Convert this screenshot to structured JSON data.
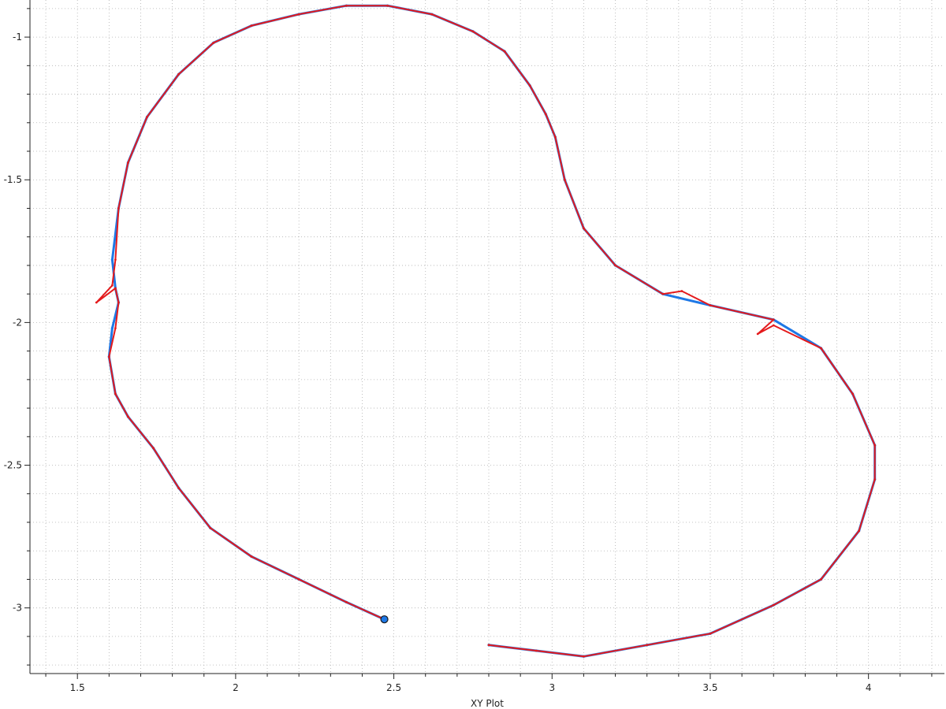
{
  "chart_data": {
    "type": "line",
    "title": "",
    "xlabel": "XY Plot",
    "ylabel": "",
    "xlim": [
      1.35,
      4.24
    ],
    "ylim": [
      -3.23,
      -0.87
    ],
    "x_ticks": [
      1.5,
      2,
      2.5,
      3,
      3.5,
      4
    ],
    "x_tick_labels": [
      "1.5",
      "2",
      "2.5",
      "3",
      "3.5",
      "4"
    ],
    "y_ticks": [
      -1,
      -1.5,
      -2,
      -2.5,
      -3
    ],
    "y_tick_labels": [
      "-1",
      "-1.5",
      "-2",
      "-2.5",
      "-3"
    ],
    "grid": true,
    "series": [
      {
        "color": "#1e78e6",
        "x": [
          2.47,
          2.35,
          2.2,
          2.05,
          1.92,
          1.82,
          1.74,
          1.66,
          1.62,
          1.6,
          1.61,
          1.63,
          1.62,
          1.61,
          1.63,
          1.66,
          1.72,
          1.82,
          1.93,
          2.05,
          2.2,
          2.35,
          2.48,
          2.62,
          2.75,
          2.85,
          2.93,
          2.98,
          3.01,
          3.04,
          3.1,
          3.2,
          3.35,
          3.5,
          3.7,
          3.85,
          3.95,
          4.02,
          4.02,
          3.97,
          3.85,
          3.7,
          3.5,
          3.3,
          3.1,
          2.95,
          2.8
        ],
        "y": [
          -3.04,
          -2.98,
          -2.9,
          -2.82,
          -2.72,
          -2.58,
          -2.44,
          -2.33,
          -2.25,
          -2.12,
          -2.02,
          -1.93,
          -1.88,
          -1.78,
          -1.6,
          -1.44,
          -1.28,
          -1.13,
          -1.02,
          -0.96,
          -0.92,
          -0.89,
          -0.89,
          -0.92,
          -0.98,
          -1.05,
          -1.17,
          -1.27,
          -1.35,
          -1.5,
          -1.67,
          -1.8,
          -1.9,
          -1.94,
          -1.99,
          -2.09,
          -2.25,
          -2.43,
          -2.55,
          -2.73,
          -2.9,
          -2.99,
          -3.09,
          -3.13,
          -3.17,
          -3.15,
          -3.13
        ]
      },
      {
        "color": "#e41a1c",
        "x": [
          2.47,
          2.35,
          2.2,
          2.05,
          1.92,
          1.82,
          1.74,
          1.66,
          1.62,
          1.6,
          1.62,
          1.63,
          1.62,
          1.56,
          1.61,
          1.62,
          1.63,
          1.66,
          1.72,
          1.82,
          1.93,
          2.05,
          2.2,
          2.35,
          2.48,
          2.62,
          2.75,
          2.85,
          2.93,
          2.98,
          3.01,
          3.04,
          3.1,
          3.2,
          3.35,
          3.41,
          3.5,
          3.7,
          3.65,
          3.7,
          3.85,
          3.95,
          4.02,
          4.02,
          3.97,
          3.85,
          3.7,
          3.5,
          3.3,
          3.1,
          2.95,
          2.8
        ],
        "y": [
          -3.04,
          -2.98,
          -2.9,
          -2.82,
          -2.72,
          -2.58,
          -2.44,
          -2.33,
          -2.25,
          -2.12,
          -2.02,
          -1.93,
          -1.88,
          -1.93,
          -1.87,
          -1.78,
          -1.6,
          -1.44,
          -1.28,
          -1.13,
          -1.02,
          -0.96,
          -0.92,
          -0.89,
          -0.89,
          -0.92,
          -0.98,
          -1.05,
          -1.17,
          -1.27,
          -1.35,
          -1.5,
          -1.67,
          -1.8,
          -1.9,
          -1.89,
          -1.94,
          -1.99,
          -2.04,
          -2.01,
          -2.09,
          -2.25,
          -2.43,
          -2.55,
          -2.73,
          -2.9,
          -2.99,
          -3.09,
          -3.13,
          -3.17,
          -3.15,
          -3.13
        ]
      }
    ],
    "marker": {
      "x": 2.47,
      "y": -3.04,
      "color": "#1e78e6"
    }
  }
}
